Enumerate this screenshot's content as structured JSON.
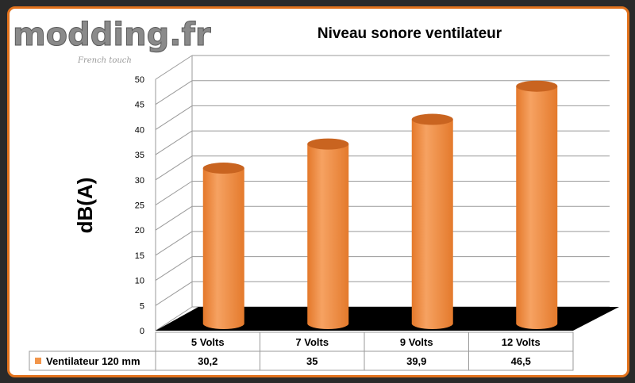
{
  "logo": {
    "brand": "modding.fr",
    "tagline": "French touch"
  },
  "colors": {
    "accent": "#e2721c",
    "bar": "#f2954a",
    "bar_dark": "#c96420",
    "floor": "#000000",
    "grid": "#9a9a9a"
  },
  "chart_data": {
    "type": "bar",
    "title": "Niveau sonore ventilateur",
    "ylabel": "dB(A)",
    "xlabel": "",
    "ylim": [
      0,
      50
    ],
    "yticks": [
      0,
      5,
      10,
      15,
      20,
      25,
      30,
      35,
      40,
      45,
      50
    ],
    "categories": [
      "5 Volts",
      "7 Volts",
      "9 Volts",
      "12 Volts"
    ],
    "series": [
      {
        "name": "Ventilateur 120 mm",
        "values": [
          30.2,
          35,
          39.9,
          46.5
        ],
        "value_labels": [
          "30,2",
          "35",
          "39,9",
          "46,5"
        ]
      }
    ],
    "grid": true,
    "legend": "data-table"
  }
}
